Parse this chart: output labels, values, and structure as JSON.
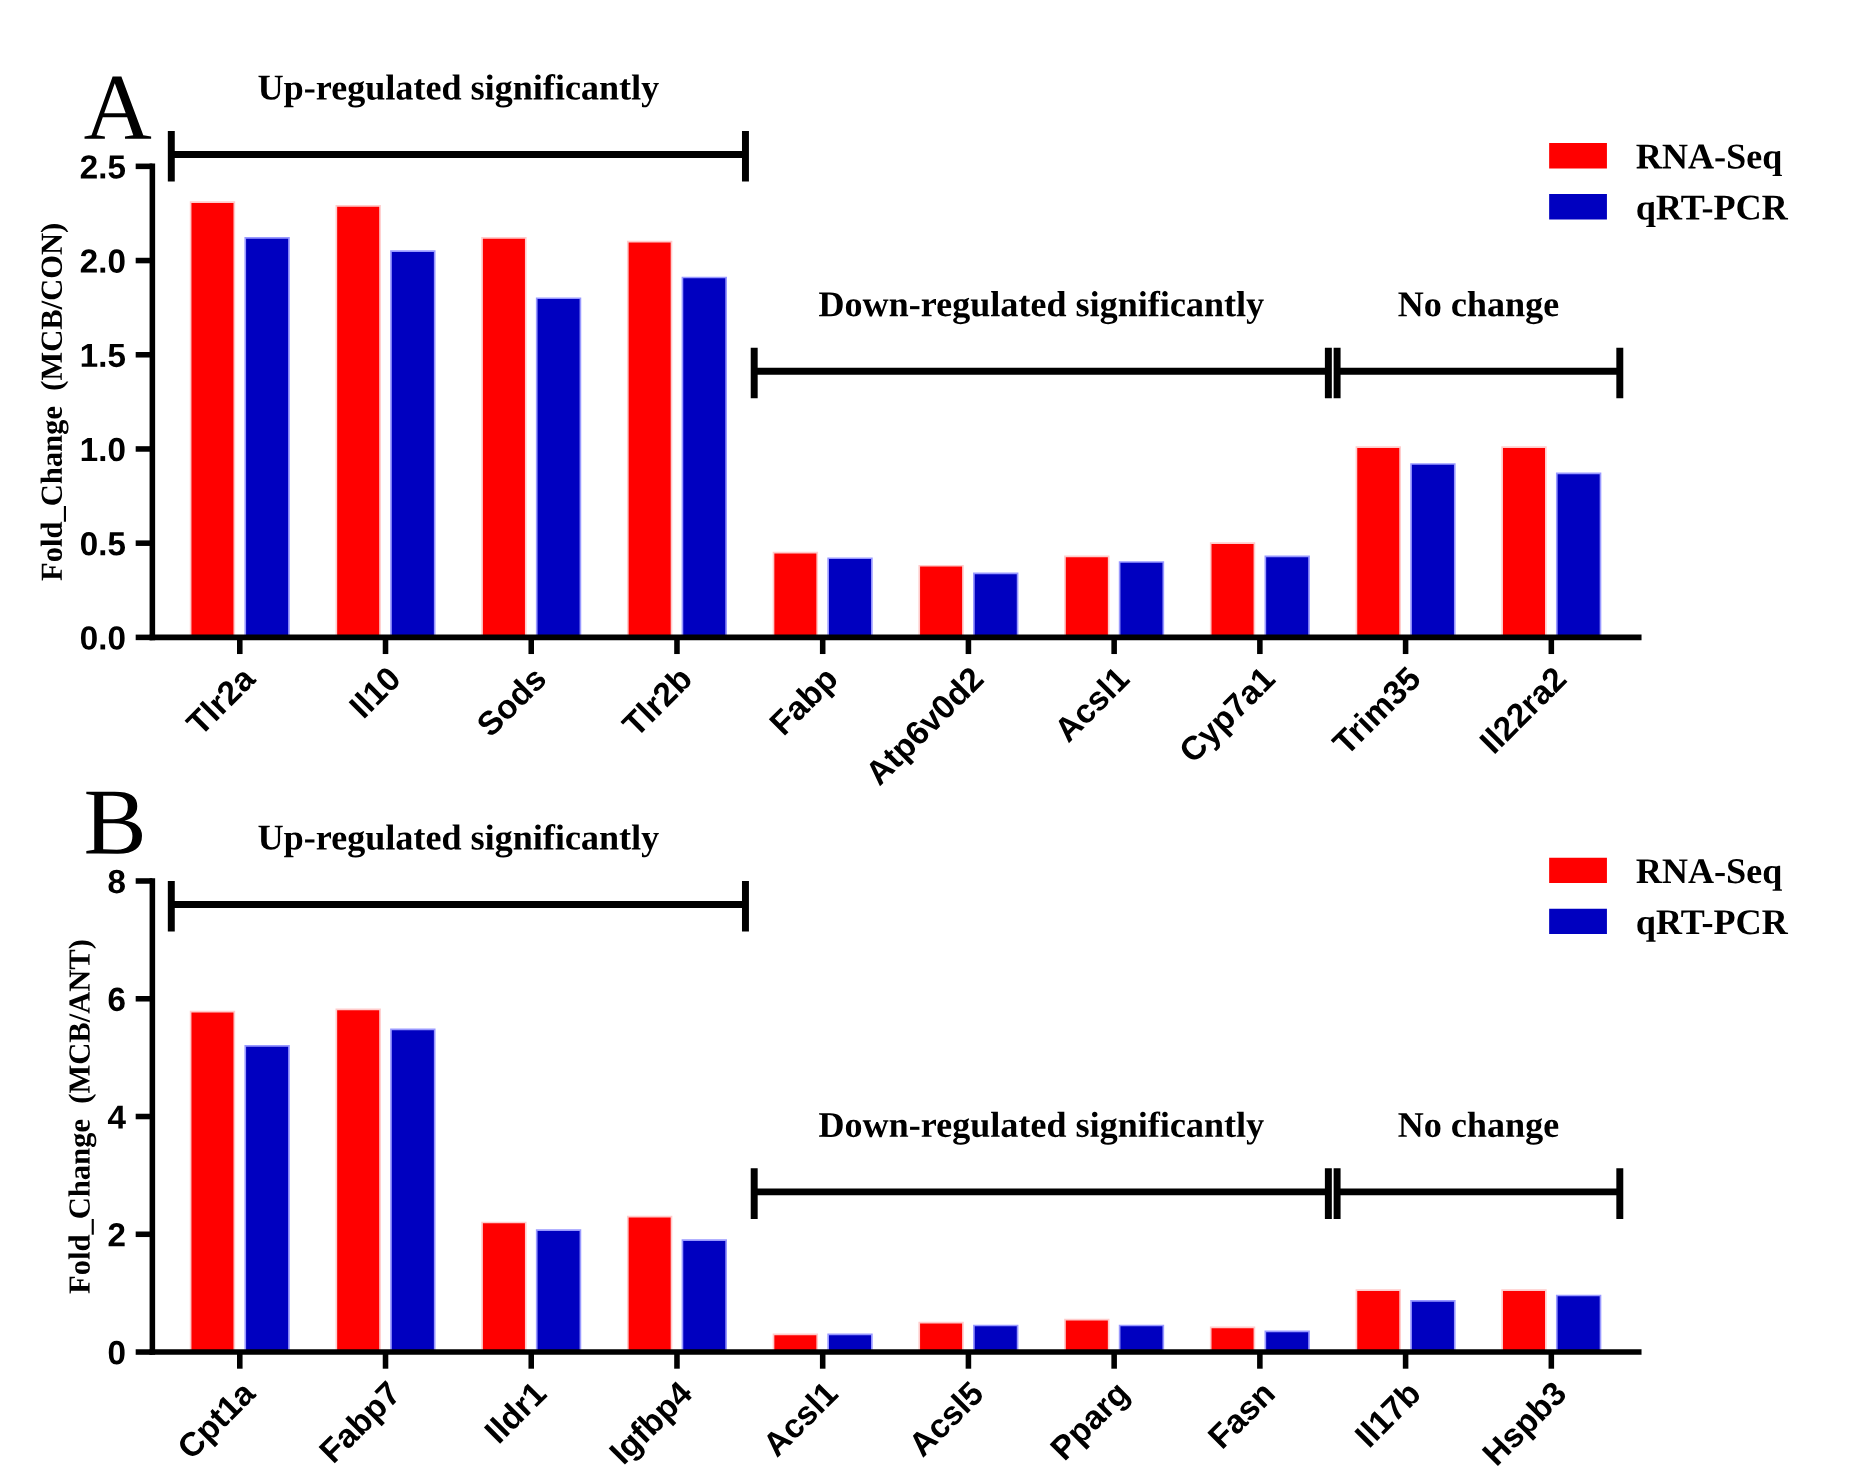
{
  "chart_data": [
    {
      "type": "bar",
      "ylabel": "Fold_Change  (MCB/CON)",
      "categories": [
        "Tlr2a",
        "Il10",
        "Sods",
        "Tlr2b",
        "Fabp",
        "Atp6v0d2",
        "Acsl1",
        "Cyp7a1",
        "Trim35",
        "Il22ra2"
      ],
      "series": [
        {
          "name": "RNA-Seq",
          "color": "#ff0000",
          "values": [
            2.31,
            2.29,
            2.12,
            2.1,
            0.45,
            0.38,
            0.43,
            0.5,
            1.01,
            1.01
          ]
        },
        {
          "name": "qRT-PCR",
          "color": "#0000c0",
          "values": [
            2.12,
            2.05,
            1.8,
            1.91,
            0.42,
            0.34,
            0.4,
            0.43,
            0.92,
            0.87
          ]
        }
      ],
      "ylim": [
        0,
        2.5
      ],
      "yticks": [
        {
          "value": 0,
          "label": "0.0"
        },
        0.5,
        {
          "value": 1,
          "label": "1.0"
        },
        1.5,
        {
          "value": 2,
          "label": "2.0"
        },
        2.5
      ],
      "legend": "top right",
      "grid": false,
      "annotations": [
        "A",
        "Up-regulated significantly",
        "Down-regulated significantly",
        "No change"
      ]
    },
    {
      "type": "bar",
      "ylabel": "Fold_Change  (MCB/ANT)",
      "categories": [
        "Cpt1a",
        "Fabp7",
        "Ildr1",
        "Igfbp4",
        "Acsl1",
        "Acsl5",
        "Pparg",
        "Fasn",
        "Il17b",
        "Hspb3"
      ],
      "series": [
        {
          "name": "RNA-Seq",
          "color": "#ff0000",
          "values": [
            5.78,
            5.82,
            2.2,
            2.3,
            0.3,
            0.5,
            0.55,
            0.42,
            1.05,
            1.05
          ]
        },
        {
          "name": "qRT-PCR",
          "color": "#0000c0",
          "values": [
            5.2,
            5.48,
            2.07,
            1.9,
            0.3,
            0.45,
            0.45,
            0.35,
            0.87,
            0.96
          ]
        }
      ],
      "ylim": [
        0,
        8
      ],
      "yticks": [
        0,
        2,
        4,
        6,
        8
      ],
      "legend": "top right",
      "grid": false,
      "annotations": [
        "B",
        "Up-regulated significantly",
        "Down-regulated significantly",
        "No change"
      ]
    }
  ]
}
